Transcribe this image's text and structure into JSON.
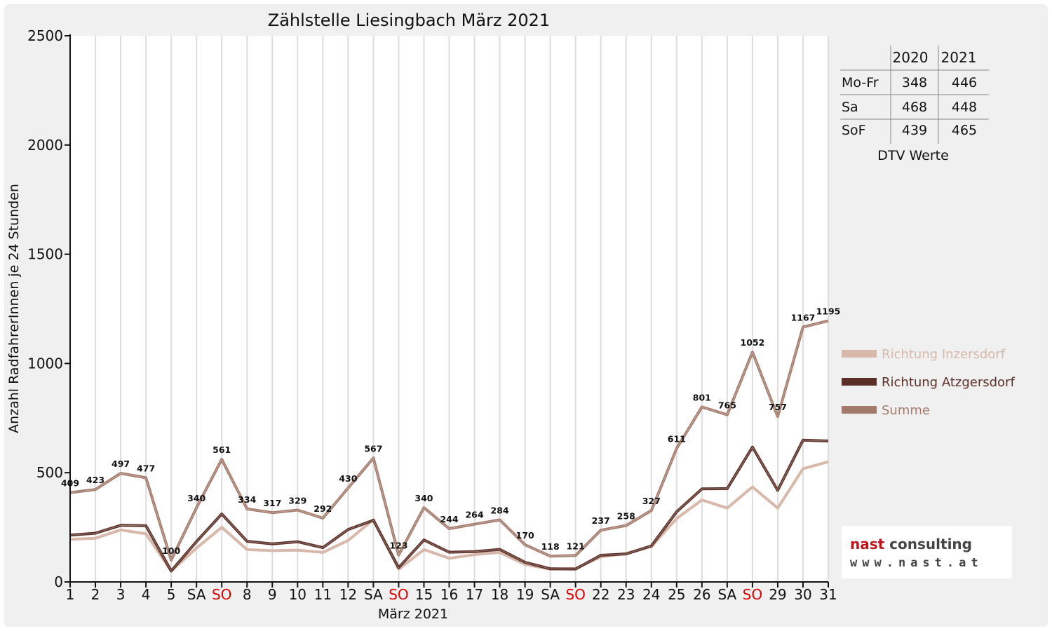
{
  "chart_data": {
    "type": "line",
    "title": "Zählstelle Liesingbach März 2021",
    "xlabel": "März 2021",
    "ylabel": "Anzahl RadfahrerInnen je 24 Stunden",
    "ylim": [
      0,
      2500
    ],
    "yticks": [
      "0",
      "500",
      "1000",
      "1500",
      "2000",
      "2500"
    ],
    "grid": true,
    "legend_position": "right",
    "categories": [
      "1",
      "2",
      "3",
      "4",
      "5",
      "SA",
      "SO",
      "8",
      "9",
      "10",
      "11",
      "12",
      "SA",
      "SO",
      "15",
      "16",
      "17",
      "18",
      "19",
      "SA",
      "SO",
      "22",
      "23",
      "24",
      "25",
      "26",
      "SA",
      "SO",
      "29",
      "30",
      "31"
    ],
    "red_categories": [
      6,
      13,
      20,
      27
    ],
    "series": [
      {
        "name": "Richtung Inzersdorf",
        "color": "#d7b8aa",
        "values": [
          195,
          200,
          238,
          220,
          50,
          155,
          250,
          148,
          143,
          145,
          135,
          190,
          285,
          58,
          148,
          108,
          125,
          135,
          80,
          58,
          62,
          115,
          130,
          162,
          290,
          375,
          338,
          435,
          338,
          518,
          550
        ]
      },
      {
        "name": "Richtung Atzgersdorf",
        "color": "#5b2f27",
        "values": [
          214,
          223,
          259,
          257,
          50,
          185,
          311,
          186,
          174,
          184,
          157,
          240,
          282,
          65,
          192,
          136,
          139,
          149,
          90,
          60,
          59,
          122,
          128,
          165,
          321,
          426,
          427,
          617,
          419,
          649,
          645
        ]
      },
      {
        "name": "Summe",
        "color": "#a47a6c",
        "values": [
          409,
          423,
          497,
          477,
          100,
          340,
          561,
          334,
          317,
          329,
          292,
          430,
          567,
          123,
          340,
          244,
          264,
          284,
          170,
          118,
          121,
          237,
          258,
          327,
          611,
          801,
          765,
          1052,
          757,
          1167,
          1195
        ]
      }
    ],
    "data_labels": [
      "409",
      "423",
      "497",
      "477",
      "100",
      "340",
      "561",
      "334",
      "317",
      "329",
      "292",
      "430",
      "567",
      "123",
      "340",
      "244",
      "264",
      "284",
      "170",
      "118",
      "121",
      "237",
      "258",
      "327",
      "611",
      "801",
      "765",
      "1052",
      "757",
      "1167",
      "1195"
    ]
  },
  "dtv_table": {
    "headers": [
      "",
      "2020",
      "2021"
    ],
    "rows": [
      {
        "label": "Mo-Fr",
        "v2020": "348",
        "v2021": "446"
      },
      {
        "label": "Sa",
        "v2020": "468",
        "v2021": "448"
      },
      {
        "label": "SoF",
        "v2020": "439",
        "v2021": "465"
      }
    ],
    "caption": "DTV Werte"
  },
  "logo": {
    "line1_a": "nast",
    "line1_b": "consulting",
    "line2": "www.nast.at",
    "color_a": "#c0151b",
    "color_b": "#444444"
  }
}
